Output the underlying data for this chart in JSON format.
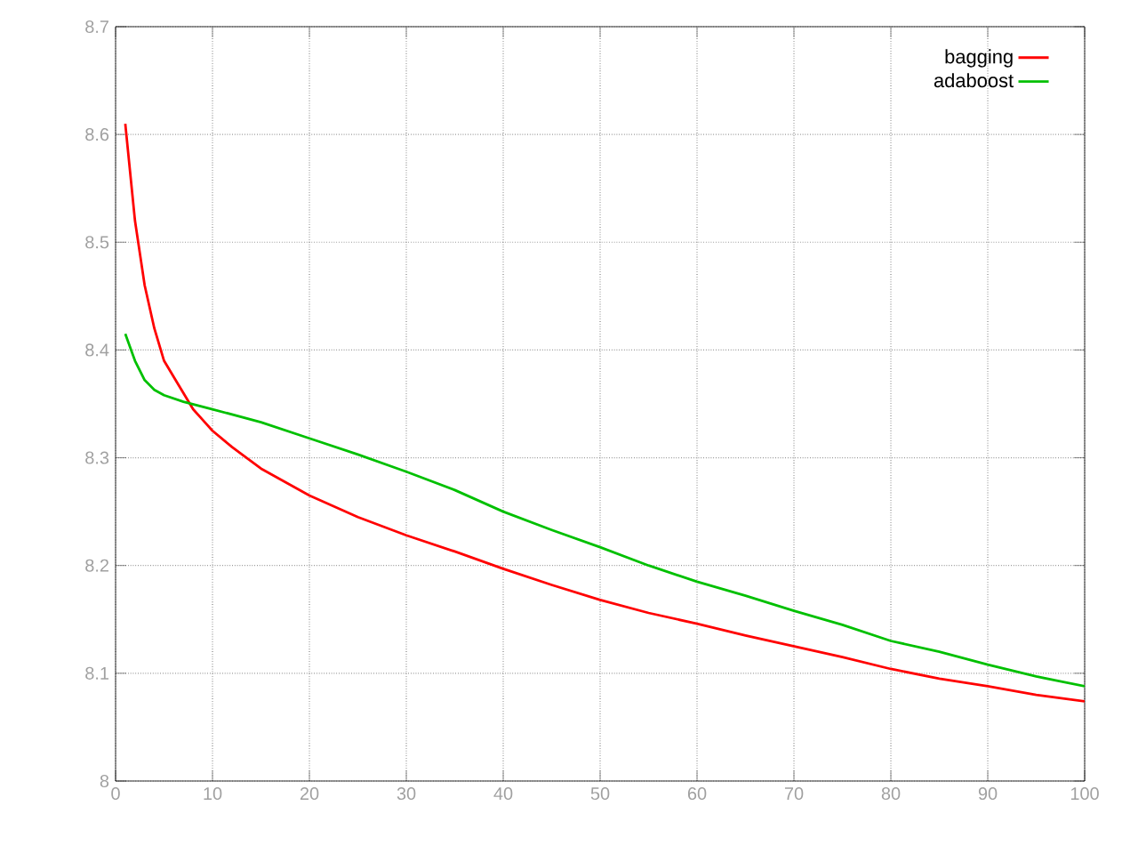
{
  "chart_data": {
    "type": "line",
    "xlim": [
      0,
      100
    ],
    "ylim": [
      8,
      8.7
    ],
    "xticks": [
      0,
      10,
      20,
      30,
      40,
      50,
      60,
      70,
      80,
      90,
      100
    ],
    "yticks": [
      8,
      8.1,
      8.2,
      8.3,
      8.4,
      8.5,
      8.6,
      8.7
    ],
    "grid": true,
    "legend": "top right",
    "marker": "none",
    "line_style": "solid",
    "series": [
      {
        "name": "bagging",
        "color": "#ff0000",
        "x": [
          1,
          2,
          3,
          4,
          5,
          6,
          7,
          8,
          9,
          10,
          12,
          15,
          20,
          25,
          30,
          35,
          40,
          45,
          50,
          55,
          60,
          65,
          70,
          75,
          80,
          85,
          90,
          95,
          100
        ],
        "values": [
          8.61,
          8.52,
          8.46,
          8.42,
          8.39,
          8.375,
          8.36,
          8.345,
          8.335,
          8.325,
          8.31,
          8.29,
          8.265,
          8.245,
          8.228,
          8.213,
          8.197,
          8.182,
          8.168,
          8.156,
          8.146,
          8.135,
          8.125,
          8.115,
          8.104,
          8.095,
          8.088,
          8.08,
          8.074
        ]
      },
      {
        "name": "adaboost",
        "color": "#00c000",
        "x": [
          1,
          2,
          3,
          4,
          5,
          7,
          10,
          15,
          20,
          25,
          30,
          35,
          40,
          45,
          50,
          55,
          60,
          65,
          70,
          75,
          80,
          85,
          90,
          95,
          100
        ],
        "values": [
          8.415,
          8.39,
          8.372,
          8.363,
          8.358,
          8.352,
          8.345,
          8.333,
          8.318,
          8.303,
          8.287,
          8.27,
          8.25,
          8.233,
          8.217,
          8.2,
          8.185,
          8.172,
          8.158,
          8.145,
          8.13,
          8.12,
          8.108,
          8.097,
          8.088
        ]
      }
    ]
  }
}
